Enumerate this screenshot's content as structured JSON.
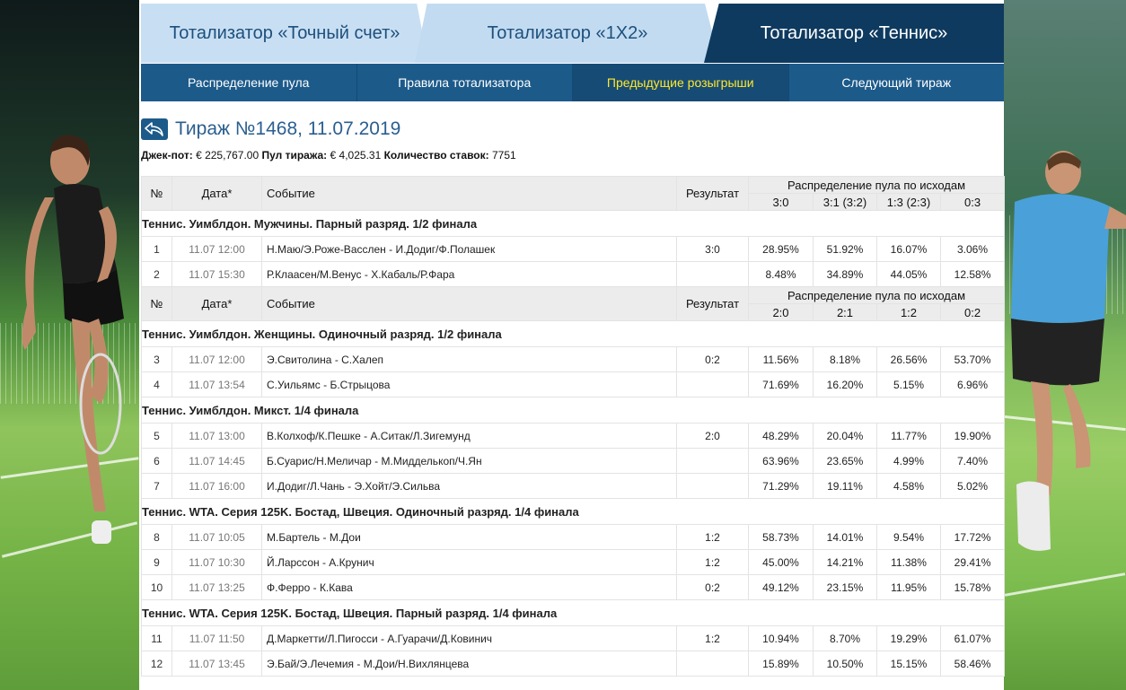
{
  "tabs": [
    {
      "label": "Тотализатор «Точный счет»"
    },
    {
      "label": "Тотализатор «1X2»"
    },
    {
      "label": "Тотализатор «Теннис»"
    }
  ],
  "subnav": [
    {
      "label": "Распределение пула"
    },
    {
      "label": "Правила тотализатора"
    },
    {
      "label": "Предыдущие розыгрыши"
    },
    {
      "label": "Следующий тираж"
    }
  ],
  "draw": {
    "title": "Тираж №1468, 11.07.2019",
    "jackpot_label": "Джек-пот:",
    "jackpot_value": "€ 225,767.00",
    "pool_label": "Пул тиража:",
    "pool_value": "€ 4,025.31",
    "bets_label": "Количество ставок:",
    "bets_value": "7751"
  },
  "table_headers": {
    "no": "№",
    "date": "Дата*",
    "event": "Событие",
    "result": "Результат",
    "pool": "Распределение пула по исходам"
  },
  "outcomes_a": [
    "3:0",
    "3:1 (3:2)",
    "1:3 (2:3)",
    "0:3"
  ],
  "outcomes_b": [
    "2:0",
    "2:1",
    "1:2",
    "0:2"
  ],
  "sections": [
    {
      "title": "Теннис. Уимблдон. Мужчины. Парный разряд. 1/2 финала",
      "rows": [
        {
          "no": "1",
          "date": "11.07 12:00",
          "event": "Н.Маю/Э.Роже-Васслен - И.Додиг/Ф.Полашек",
          "result": "3:0",
          "p": [
            "28.95%",
            "51.92%",
            "16.07%",
            "3.06%"
          ]
        },
        {
          "no": "2",
          "date": "11.07 15:30",
          "event": "Р.Клаасен/М.Венус - Х.Кабаль/Р.Фара",
          "result": "",
          "p": [
            "8.48%",
            "34.89%",
            "44.05%",
            "12.58%"
          ]
        }
      ]
    },
    {
      "title": "Теннис. Уимблдон. Женщины. Одиночный разряд. 1/2 финала",
      "rows": [
        {
          "no": "3",
          "date": "11.07 12:00",
          "event": "Э.Свитолина - С.Халеп",
          "result": "0:2",
          "p": [
            "11.56%",
            "8.18%",
            "26.56%",
            "53.70%"
          ]
        },
        {
          "no": "4",
          "date": "11.07 13:54",
          "event": "С.Уильямс - Б.Стрыцова",
          "result": "",
          "p": [
            "71.69%",
            "16.20%",
            "5.15%",
            "6.96%"
          ]
        }
      ]
    },
    {
      "title": "Теннис. Уимблдон. Микст. 1/4 финала",
      "rows": [
        {
          "no": "5",
          "date": "11.07 13:00",
          "event": "В.Колхоф/К.Пешке - А.Ситак/Л.Зигемунд",
          "result": "2:0",
          "p": [
            "48.29%",
            "20.04%",
            "11.77%",
            "19.90%"
          ]
        },
        {
          "no": "6",
          "date": "11.07 14:45",
          "event": "Б.Суарис/Н.Меличар - М.Мидделькоп/Ч.Ян",
          "result": "",
          "p": [
            "63.96%",
            "23.65%",
            "4.99%",
            "7.40%"
          ]
        },
        {
          "no": "7",
          "date": "11.07 16:00",
          "event": "И.Додиг/Л.Чань - Э.Хойт/Э.Сильва",
          "result": "",
          "p": [
            "71.29%",
            "19.11%",
            "4.58%",
            "5.02%"
          ]
        }
      ]
    },
    {
      "title": "Теннис. WTA. Серия 125K. Бостад, Швеция. Одиночный разряд. 1/4 финала",
      "rows": [
        {
          "no": "8",
          "date": "11.07 10:05",
          "event": "М.Бартель - М.Дои",
          "result": "1:2",
          "p": [
            "58.73%",
            "14.01%",
            "9.54%",
            "17.72%"
          ]
        },
        {
          "no": "9",
          "date": "11.07 10:30",
          "event": "Й.Ларссон - А.Крунич",
          "result": "1:2",
          "p": [
            "45.00%",
            "14.21%",
            "11.38%",
            "29.41%"
          ]
        },
        {
          "no": "10",
          "date": "11.07 13:25",
          "event": "Ф.Ферро - К.Кава",
          "result": "0:2",
          "p": [
            "49.12%",
            "23.15%",
            "11.95%",
            "15.78%"
          ]
        }
      ]
    },
    {
      "title": "Теннис. WTA. Серия 125K. Бостад, Швеция. Парный разряд. 1/4 финала",
      "rows": [
        {
          "no": "11",
          "date": "11.07 11:50",
          "event": "Д.Маркетти/Л.Пигосси - А.Гуарачи/Д.Ковинич",
          "result": "1:2",
          "p": [
            "10.94%",
            "8.70%",
            "19.29%",
            "61.07%"
          ]
        },
        {
          "no": "12",
          "date": "11.07 13:45",
          "event": "Э.Бай/Э.Лечемия - М.Дои/Н.Вихлянцева",
          "result": "",
          "p": [
            "15.89%",
            "10.50%",
            "15.15%",
            "58.46%"
          ]
        }
      ]
    }
  ],
  "icons": {
    "back": "back-arrow-icon"
  },
  "colors": {
    "nav_dark": "#0e3a5f",
    "nav_blue": "#1c5a8a",
    "tab_light": "#c8dff3",
    "active_link": "#ffe82b",
    "title_blue": "#2a5f8f"
  }
}
